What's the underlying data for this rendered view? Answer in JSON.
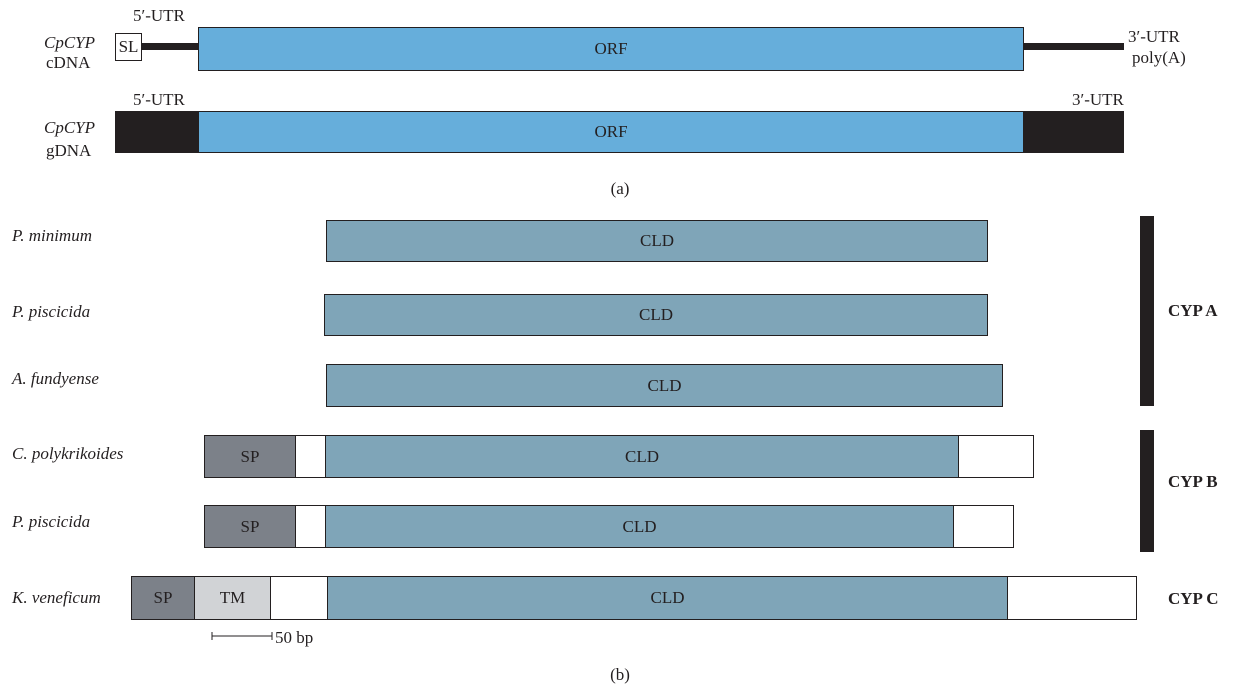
{
  "panel_a": {
    "caption": "(a)",
    "cdna": {
      "name_line1": "CpCYP",
      "name_line2": "cDNA",
      "utr5_label": "5′-UTR",
      "sl_label": "SL",
      "orf_label": "ORF",
      "utr3_label": "3′-UTR",
      "polya_label": "poly(A)"
    },
    "gdna": {
      "name_line1": "CpCYP",
      "name_line2": "gDNA",
      "utr5_label": "5′-UTR",
      "orf_label": "ORF",
      "utr3_label": "3′-UTR"
    }
  },
  "panel_b": {
    "caption": "(b)",
    "rows": [
      {
        "species": "P. minimum",
        "cld": "CLD"
      },
      {
        "species": "P. piscicida",
        "cld": "CLD"
      },
      {
        "species": "A. fundyense",
        "cld": "CLD"
      },
      {
        "species": "C. polykrikoides",
        "sp": "SP",
        "cld": "CLD"
      },
      {
        "species": "P. piscicida",
        "sp": "SP",
        "cld": "CLD"
      },
      {
        "species": "K. veneficum",
        "sp": "SP",
        "tm": "TM",
        "cld": "CLD"
      }
    ],
    "groups": {
      "a": "CYP A",
      "b": "CYP B",
      "c": "CYP C"
    },
    "scale_label": "50 bp"
  },
  "colors": {
    "orf": "#66aedb",
    "cld": "#7fa5b8",
    "sp": "#7c8189",
    "tm": "#d1d3d6",
    "utr_dark": "#231f20"
  }
}
